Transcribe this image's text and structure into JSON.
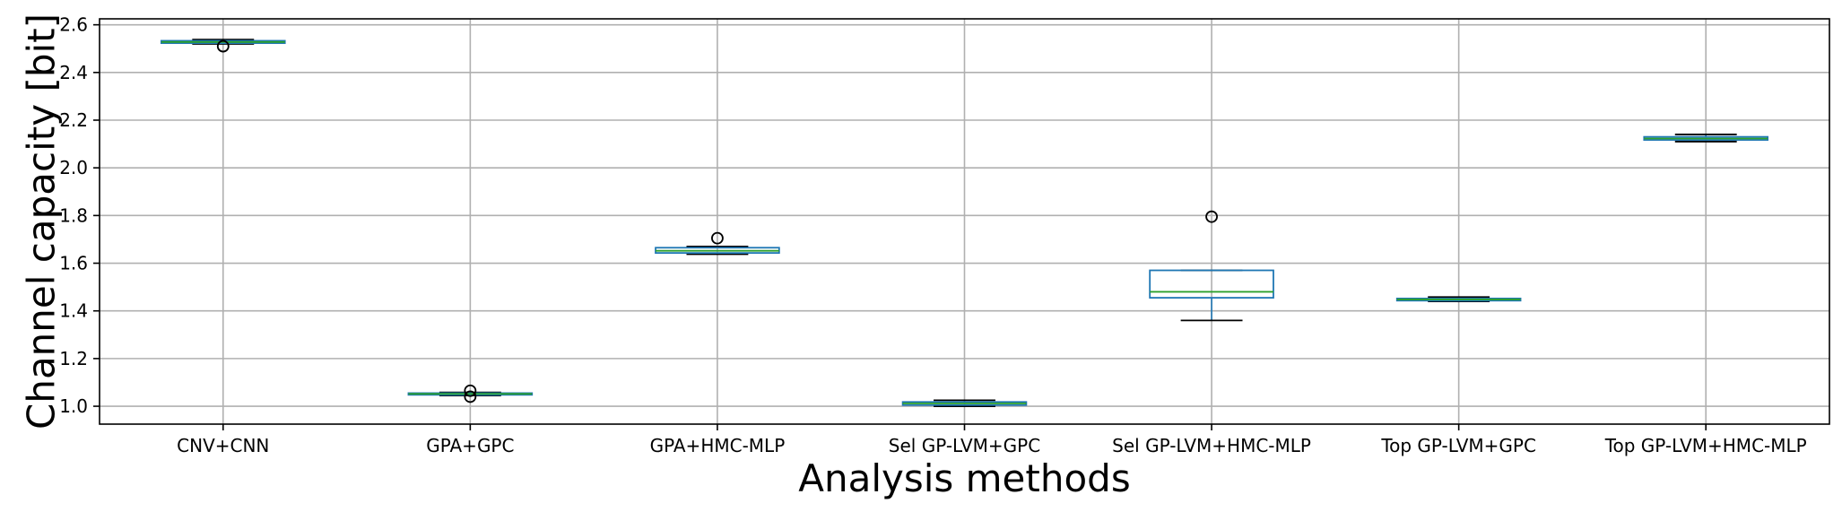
{
  "chart_data": {
    "type": "box",
    "title": "",
    "xlabel": "Analysis methods",
    "ylabel": "Channel capacity [bit]",
    "ylim": [
      0.925,
      2.625
    ],
    "yticks": [
      "1.0",
      "1.2",
      "1.4",
      "1.6",
      "1.8",
      "2.0",
      "2.2",
      "2.4",
      "2.6"
    ],
    "grid": true,
    "colors": {
      "box": "#1f77b4",
      "median": "#2ca02c",
      "whisker": "#1f77b4",
      "cap": "#000000",
      "grid": "#b0b0b0",
      "outlier": "#000000"
    },
    "categories": [
      "CNV+CNN",
      "GPA+GPC",
      "GPA+HMC-MLP",
      "Sel GP-LVM+GPC",
      "Sel GP-LVM+HMC-MLP",
      "Top GP-LVM+GPC",
      "Top GP-LVM+HMC-MLP"
    ],
    "boxes": [
      {
        "whislo": 2.52,
        "q1": 2.523,
        "med": 2.528,
        "q3": 2.533,
        "whishi": 2.538,
        "fliers": [
          2.51
        ]
      },
      {
        "whislo": 1.045,
        "q1": 1.048,
        "med": 1.052,
        "q3": 1.055,
        "whishi": 1.058,
        "fliers": [
          1.04,
          1.065
        ]
      },
      {
        "whislo": 1.638,
        "q1": 1.643,
        "med": 1.652,
        "q3": 1.665,
        "whishi": 1.67,
        "fliers": [
          1.705
        ]
      },
      {
        "whislo": 1.0,
        "q1": 1.005,
        "med": 1.012,
        "q3": 1.018,
        "whishi": 1.025,
        "fliers": []
      },
      {
        "whislo": 1.36,
        "q1": 1.455,
        "med": 1.48,
        "q3": 1.57,
        "whishi": 1.57,
        "fliers": [
          1.795
        ]
      },
      {
        "whislo": 1.44,
        "q1": 1.443,
        "med": 1.448,
        "q3": 1.452,
        "whishi": 1.458,
        "fliers": []
      },
      {
        "whislo": 2.11,
        "q1": 2.117,
        "med": 2.123,
        "q3": 2.13,
        "whishi": 2.14,
        "fliers": []
      }
    ]
  }
}
